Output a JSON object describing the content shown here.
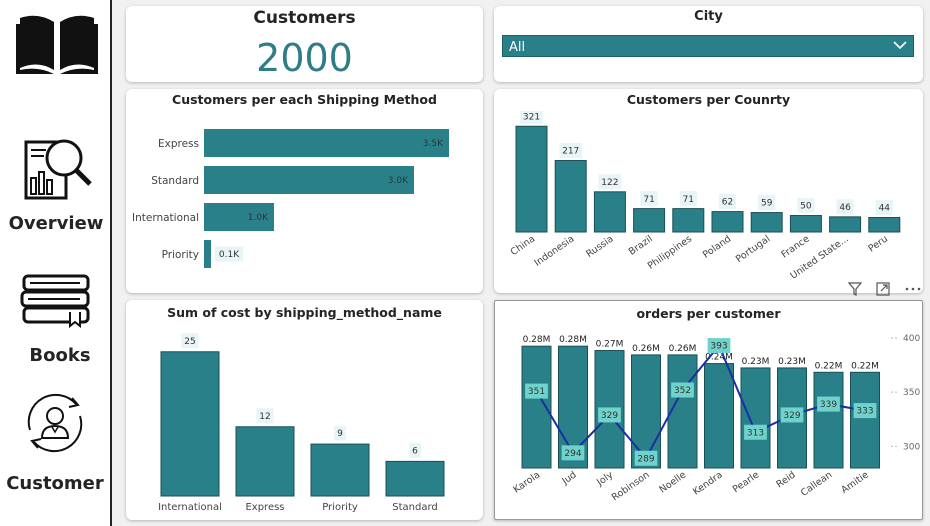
{
  "nav": {
    "items": [
      {
        "label": "Overview"
      },
      {
        "label": "Books"
      },
      {
        "label": "Customer"
      }
    ]
  },
  "kpi": {
    "title": "Customers",
    "value": "2000"
  },
  "city_slicer": {
    "title": "City",
    "selected": "All"
  },
  "colors": {
    "bar": "#2a8089",
    "line": "#1c2fa0",
    "label_bg": "#e8f4f5",
    "line_label_bg": "#6fd3cc"
  },
  "icons": [
    "book-icon",
    "report-search-icon",
    "books-stack-icon",
    "customer-cycle-icon",
    "filter-icon",
    "focus-mode-icon",
    "more-options-icon",
    "chevron-down-icon"
  ],
  "chart_data": [
    {
      "type": "bar",
      "orientation": "horizontal",
      "title": "Customers per each Shipping Method",
      "categories": [
        "Express",
        "Standard",
        "International",
        "Priority"
      ],
      "values": [
        3500,
        3000,
        1000,
        100
      ],
      "data_labels": [
        "3.5K",
        "3.0K",
        "1.0K",
        "0.1K"
      ],
      "xlim": [
        0,
        3600
      ]
    },
    {
      "type": "bar",
      "title": "Customers per Counrty",
      "categories": [
        "China",
        "Indonesia",
        "Russia",
        "Brazil",
        "Philippines",
        "Poland",
        "Portugal",
        "France",
        "United State...",
        "Peru"
      ],
      "values": [
        321,
        217,
        122,
        71,
        71,
        62,
        59,
        50,
        46,
        44
      ],
      "ylim": [
        0,
        340
      ]
    },
    {
      "type": "bar",
      "title": "Sum of cost by shipping_method_name",
      "categories": [
        "International",
        "Express",
        "Priority",
        "Standard"
      ],
      "values": [
        25,
        12,
        9,
        6
      ],
      "ylim": [
        0,
        26
      ]
    },
    {
      "type": "bar+line",
      "title": "orders per customer",
      "categories": [
        "Karola",
        "Jud",
        "Joly",
        "Robinson",
        "Noelle",
        "Kendra",
        "Pearle",
        "Reid",
        "Callean",
        "Amitie"
      ],
      "series": [
        {
          "values": [
            280000,
            280000,
            270000,
            260000,
            260000,
            240000,
            230000,
            230000,
            220000,
            220000
          ],
          "data_labels": [
            "0.28M",
            "0.28M",
            "0.27M",
            "0.26M",
            "0.26M",
            "0.24M",
            "0.23M",
            "0.23M",
            "0.22M",
            "0.22M"
          ]
        },
        {
          "values": [
            351,
            294,
            329,
            289,
            352,
            393,
            313,
            329,
            339,
            333
          ]
        }
      ],
      "y2_ticks": [
        "400",
        "350",
        "300"
      ],
      "y2lim": [
        280,
        400
      ]
    }
  ]
}
